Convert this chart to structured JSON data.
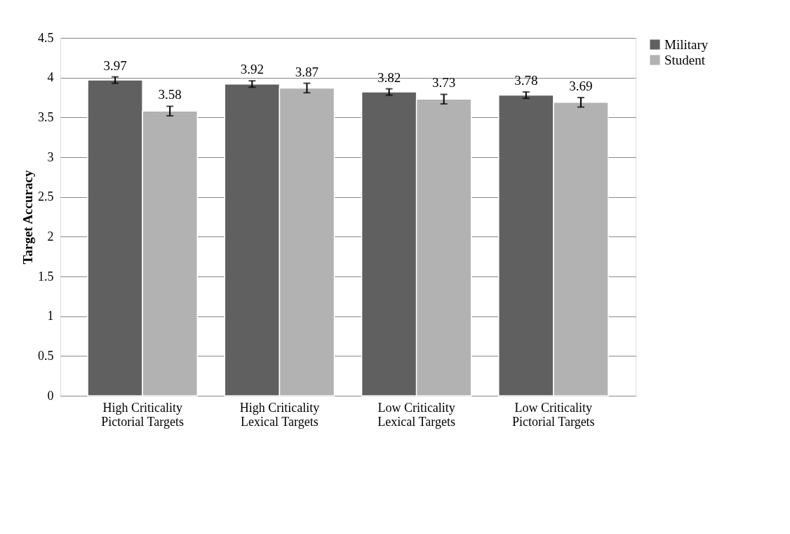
{
  "chart_data": {
    "type": "bar",
    "ylabel": "Target Accuracy",
    "categories": [
      "High Criticality Pictorial Targets",
      "High Criticality Lexical Targets",
      "Low Criticality Lexical Targets",
      "Low Criticality Pictorial Targets"
    ],
    "series": [
      {
        "name": "Military",
        "color": "#606060",
        "values": [
          3.97,
          3.92,
          3.82,
          3.78
        ],
        "errors": [
          0.04,
          0.04,
          0.04,
          0.04
        ]
      },
      {
        "name": "Student",
        "color": "#b2b2b2",
        "values": [
          3.58,
          3.87,
          3.73,
          3.69
        ],
        "errors": [
          0.06,
          0.06,
          0.06,
          0.06
        ]
      }
    ],
    "ylim": [
      0,
      4.5
    ],
    "yticks": [
      0,
      0.5,
      1,
      1.5,
      2,
      2.5,
      3,
      3.5,
      4,
      4.5
    ],
    "grid": "y",
    "legend": "right",
    "data_labels": true
  }
}
